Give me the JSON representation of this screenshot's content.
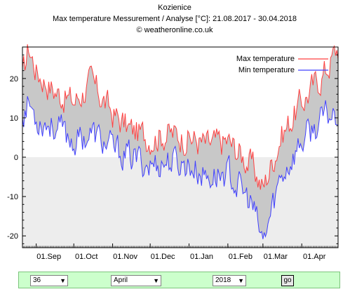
{
  "chart_data": {
    "type": "line",
    "title": "Kozienice",
    "subtitle": "Max temperature Messurement / Analyse [°C]: 21.08.2017 - 30.04.2018",
    "source": "© weatheronline.co.uk",
    "ylim": [
      -23,
      28
    ],
    "yticks": [
      -20,
      -10,
      0,
      10,
      20
    ],
    "x_range": [
      "2017-08-21",
      "2018-04-30"
    ],
    "xtick_labels": [
      "01.Sep",
      "01.Oct",
      "01.Nov",
      "01.Dec",
      "01.Jan",
      "01.Feb",
      "01.Mar",
      "01.Apr"
    ],
    "legend_position": "top-right",
    "grid": false,
    "series": [
      {
        "name": "Max temperature",
        "color": "#ff4040",
        "monthly_keypoints": [
          {
            "date": "2017-08-21",
            "value": 20
          },
          {
            "date": "2017-08-26",
            "value": 28
          },
          {
            "date": "2017-09-01",
            "value": 22
          },
          {
            "date": "2017-09-15",
            "value": 17
          },
          {
            "date": "2017-10-01",
            "value": 14
          },
          {
            "date": "2017-10-15",
            "value": 19
          },
          {
            "date": "2017-11-01",
            "value": 11
          },
          {
            "date": "2017-11-15",
            "value": 7
          },
          {
            "date": "2017-12-01",
            "value": 5
          },
          {
            "date": "2017-12-15",
            "value": 6
          },
          {
            "date": "2018-01-01",
            "value": 5
          },
          {
            "date": "2018-01-15",
            "value": 3
          },
          {
            "date": "2018-02-01",
            "value": 4
          },
          {
            "date": "2018-02-20",
            "value": -2
          },
          {
            "date": "2018-03-01",
            "value": -8
          },
          {
            "date": "2018-03-15",
            "value": 5
          },
          {
            "date": "2018-04-01",
            "value": 14
          },
          {
            "date": "2018-04-20",
            "value": 22
          },
          {
            "date": "2018-04-30",
            "value": 28
          }
        ]
      },
      {
        "name": "Min temperature",
        "color": "#4040ff",
        "monthly_keypoints": [
          {
            "date": "2017-08-21",
            "value": 11
          },
          {
            "date": "2017-08-26",
            "value": 14
          },
          {
            "date": "2017-09-01",
            "value": 10
          },
          {
            "date": "2017-09-15",
            "value": 8
          },
          {
            "date": "2017-10-01",
            "value": 4
          },
          {
            "date": "2017-10-15",
            "value": 6
          },
          {
            "date": "2017-11-01",
            "value": 2
          },
          {
            "date": "2017-11-15",
            "value": 0
          },
          {
            "date": "2017-12-01",
            "value": -2
          },
          {
            "date": "2017-12-15",
            "value": -1
          },
          {
            "date": "2018-01-01",
            "value": -2
          },
          {
            "date": "2018-01-15",
            "value": -5
          },
          {
            "date": "2018-02-01",
            "value": -4
          },
          {
            "date": "2018-02-20",
            "value": -12
          },
          {
            "date": "2018-03-01",
            "value": -22
          },
          {
            "date": "2018-03-15",
            "value": -5
          },
          {
            "date": "2018-04-01",
            "value": 4
          },
          {
            "date": "2018-04-20",
            "value": 10
          },
          {
            "date": "2018-04-30",
            "value": 12
          }
        ]
      }
    ]
  },
  "controls": {
    "days_value": "36",
    "month_value": "April",
    "year_value": "2018",
    "go_label": "go"
  }
}
